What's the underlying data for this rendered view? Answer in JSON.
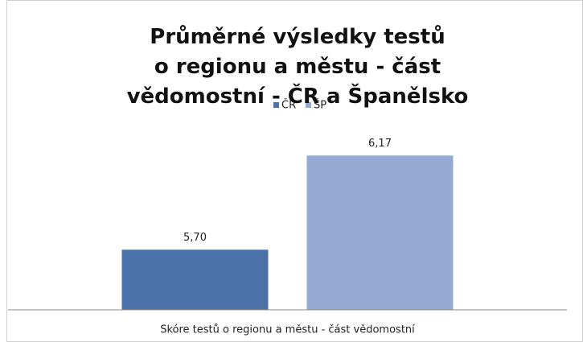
{
  "chart_data": {
    "type": "bar",
    "title": "Průměrné výsledky testů o regionu a městu - část vědomostní - ČR a Španělsko",
    "categories": [
      "Skóre testů o regionu a městu - část vědomostní"
    ],
    "series": [
      {
        "name": "ČR",
        "color": "#4a72a8",
        "values": [
          5.7
        ],
        "value_labels": [
          "5,70"
        ]
      },
      {
        "name": "ŠP",
        "color": "#95abd4",
        "values": [
          6.17
        ],
        "value_labels": [
          "6,17"
        ]
      }
    ],
    "ylim": [
      5.4,
      6.4
    ]
  }
}
